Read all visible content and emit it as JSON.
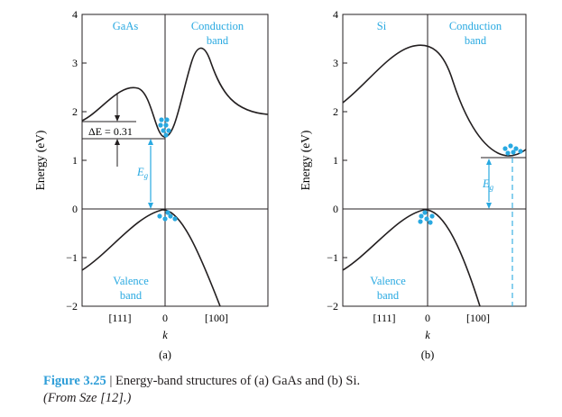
{
  "colors": {
    "ink": "#231f20",
    "accent": "#29a9e1"
  },
  "y_axis_label": "Energy (eV)",
  "panels": [
    {
      "id": "a",
      "material": "GaAs",
      "conduction_label": [
        "Conduction",
        "band"
      ],
      "valence_label": [
        "Valence",
        "band"
      ],
      "delta_e": "ΔE = 0.31",
      "gap_label": "E",
      "gap_sub": "g",
      "y_ticks": [
        "4",
        "3",
        "2",
        "1",
        "0",
        "−1",
        "−2"
      ],
      "x_ticks": [
        "[111]",
        "0",
        "[100]"
      ],
      "x_label": "k",
      "sublabel": "(a)"
    },
    {
      "id": "b",
      "material": "Si",
      "conduction_label": [
        "Conduction",
        "band"
      ],
      "valence_label": [
        "Valence",
        "band"
      ],
      "gap_label": "E",
      "gap_sub": "g",
      "y_ticks": [
        "4",
        "3",
        "2",
        "1",
        "0",
        "−1",
        "−2"
      ],
      "x_ticks": [
        "[111]",
        "0",
        "[100]"
      ],
      "x_label": "k",
      "sublabel": "(b)"
    }
  ],
  "caption": {
    "figure": "Figure 3.25",
    "separator": " | ",
    "text": "Energy-band structures of (a) GaAs and (b) Si.",
    "source": "(From Sze [12].)"
  }
}
